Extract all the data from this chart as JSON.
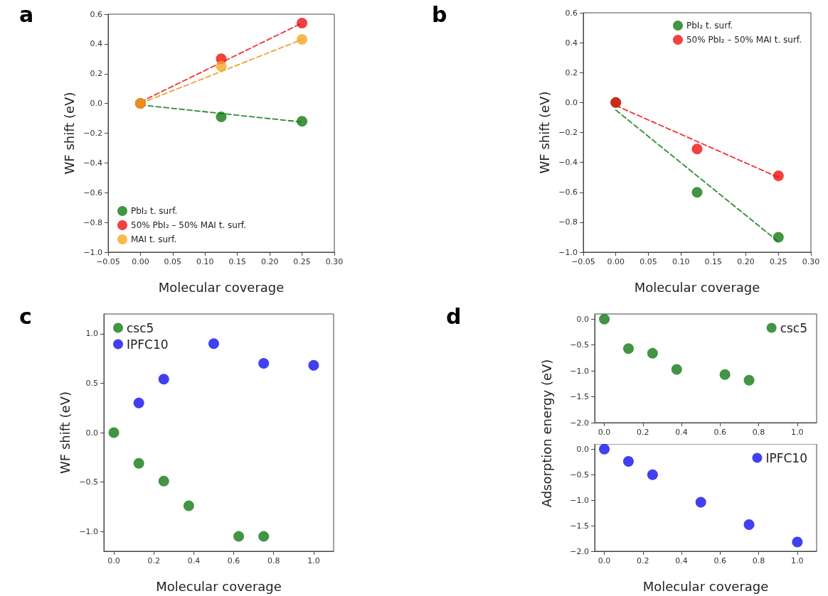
{
  "chart_data": [
    {
      "type": "scatter",
      "title": "a",
      "xlabel": "Molecular coverage",
      "ylabel": "WF shift (eV)",
      "marker": "circle",
      "legend": "bottom left",
      "grid": false,
      "xlim": [
        -0.05,
        0.3
      ],
      "xticks": [
        {
          "value": -0.05,
          "label": "−0.05"
        },
        {
          "value": 0,
          "label": "0.00"
        },
        {
          "value": 0.05,
          "label": "0.05"
        },
        {
          "value": 0.1,
          "label": "0.10"
        },
        {
          "value": 0.15,
          "label": "0.15"
        },
        {
          "value": 0.2,
          "label": "0.20"
        },
        {
          "value": 0.25,
          "label": "0.25"
        },
        {
          "value": 0.3,
          "label": "0.30"
        }
      ],
      "ylim": [
        -1,
        0.6
      ],
      "yticks": [
        {
          "value": -1,
          "label": "−1.0"
        },
        {
          "value": -0.8,
          "label": "−0.8"
        },
        {
          "value": -0.6,
          "label": "−0.6"
        },
        {
          "value": -0.4,
          "label": "−0.4"
        },
        {
          "value": -0.2,
          "label": "−0.2"
        },
        {
          "value": 0,
          "label": "0.0"
        },
        {
          "value": 0.2,
          "label": "0.2"
        },
        {
          "value": 0.4,
          "label": "0.4"
        },
        {
          "value": 0.6,
          "label": "0.6"
        }
      ],
      "series": [
        {
          "type": "line",
          "marker": "none",
          "line_style": "dashed",
          "color": "#2e8b2e",
          "x": [
            0,
            0.25
          ],
          "values": [
            -0.01,
            -0.125
          ]
        },
        {
          "type": "line",
          "marker": "none",
          "line_style": "dashed",
          "color": "#f0a030",
          "x": [
            0,
            0.25
          ],
          "values": [
            0,
            0.43
          ]
        },
        {
          "type": "line",
          "marker": "none",
          "line_style": "dashed",
          "color": "#ee3333",
          "x": [
            0,
            0.25
          ],
          "values": [
            0.01,
            0.54
          ]
        },
        {
          "name": "PbI₂ t. surf.",
          "color": "#137a13",
          "x": [
            0,
            0.125,
            0.25
          ],
          "values": [
            0,
            -0.09,
            -0.12
          ]
        },
        {
          "name": "50% PbI₂ – 50% MAI t. surf.",
          "color": "#ee1111",
          "x": [
            0,
            0.125,
            0.25
          ],
          "values": [
            0,
            0.3,
            0.54
          ]
        },
        {
          "name": "MAI t. surf.",
          "color": "#f5a623",
          "x": [
            0,
            0.125,
            0.25
          ],
          "values": [
            0,
            0.25,
            0.43
          ]
        }
      ]
    },
    {
      "type": "scatter",
      "title": "b",
      "xlabel": "Molecular coverage",
      "ylabel": "WF shift (eV)",
      "marker": "circle",
      "legend": "top right",
      "grid": false,
      "xlim": [
        -0.05,
        0.3
      ],
      "xticks": [
        {
          "value": -0.05,
          "label": "−0.05"
        },
        {
          "value": 0,
          "label": "0.00"
        },
        {
          "value": 0.05,
          "label": "0.05"
        },
        {
          "value": 0.1,
          "label": "0.10"
        },
        {
          "value": 0.15,
          "label": "0.15"
        },
        {
          "value": 0.2,
          "label": "0.20"
        },
        {
          "value": 0.25,
          "label": "0.25"
        },
        {
          "value": 0.3,
          "label": "0.30"
        }
      ],
      "ylim": [
        -1,
        0.6
      ],
      "yticks": [
        {
          "value": -1,
          "label": "−1.0"
        },
        {
          "value": -0.8,
          "label": "−0.8"
        },
        {
          "value": -0.6,
          "label": "−0.6"
        },
        {
          "value": -0.4,
          "label": "−0.4"
        },
        {
          "value": -0.2,
          "label": "−0.2"
        },
        {
          "value": 0,
          "label": "0.0"
        },
        {
          "value": 0.2,
          "label": "0.2"
        },
        {
          "value": 0.4,
          "label": "0.4"
        },
        {
          "value": 0.6,
          "label": "0.6"
        }
      ],
      "series": [
        {
          "type": "line",
          "marker": "none",
          "line_style": "dashed",
          "color": "#2e8b2e",
          "x": [
            0,
            0.25
          ],
          "values": [
            -0.05,
            -0.93
          ]
        },
        {
          "type": "line",
          "marker": "none",
          "line_style": "dashed",
          "color": "#ee3333",
          "x": [
            0,
            0.25
          ],
          "values": [
            -0.02,
            -0.5
          ]
        },
        {
          "name": "PbI₂ t. surf.",
          "color": "#137a13",
          "x": [
            0,
            0.125,
            0.25
          ],
          "values": [
            0,
            -0.6,
            -0.9
          ]
        },
        {
          "name": "50% PbI₂ – 50% MAI t. surf.",
          "color": "#ee1111",
          "x": [
            0,
            0.125,
            0.25
          ],
          "values": [
            0,
            -0.31,
            -0.49
          ]
        }
      ]
    },
    {
      "type": "scatter",
      "title": "c",
      "xlabel": "Molecular coverage",
      "ylabel": "WF shift (eV)",
      "marker": "circle",
      "legend": "top left",
      "grid": false,
      "xlim": [
        -0.05,
        1.1
      ],
      "xticks": [
        {
          "value": 0,
          "label": "0.0"
        },
        {
          "value": 0.2,
          "label": "0.2"
        },
        {
          "value": 0.4,
          "label": "0.4"
        },
        {
          "value": 0.6,
          "label": "0.6"
        },
        {
          "value": 0.8,
          "label": "0.8"
        },
        {
          "value": 1,
          "label": "1.0"
        }
      ],
      "ylim": [
        -1.2,
        1.2
      ],
      "yticks": [
        {
          "value": -1,
          "label": "−1.0"
        },
        {
          "value": -0.5,
          "label": "−0.5"
        },
        {
          "value": 0,
          "label": "0.0"
        },
        {
          "value": 0.5,
          "label": "0.5"
        },
        {
          "value": 1,
          "label": "1.0"
        }
      ],
      "series": [
        {
          "name": "csc5",
          "color": "#137a13",
          "x": [
            0,
            0.125,
            0.25,
            0.375,
            0.625,
            0.75
          ],
          "values": [
            0,
            -0.31,
            -0.49,
            -0.74,
            -1.05,
            -1.05
          ]
        },
        {
          "name": "IPFC10",
          "color": "#1010ee",
          "x": [
            0.125,
            0.25,
            0.5,
            0.75,
            1.0
          ],
          "values": [
            0.3,
            0.54,
            0.9,
            0.7,
            0.68
          ]
        }
      ]
    },
    {
      "type": "scatter",
      "title": "d",
      "ylabel": "Adsorption energy (eV)",
      "marker": "circle",
      "legend": "top right",
      "grid": false,
      "xlim": [
        -0.05,
        1.1
      ],
      "xticks": [
        {
          "value": 0,
          "label": "0.0"
        },
        {
          "value": 0.2,
          "label": "0.2"
        },
        {
          "value": 0.4,
          "label": "0.4"
        },
        {
          "value": 0.6,
          "label": "0.6"
        },
        {
          "value": 0.8,
          "label": "0.8"
        },
        {
          "value": 1,
          "label": "1.0"
        }
      ],
      "ylim": [
        -2,
        0.1
      ],
      "yticks": [
        {
          "value": -2,
          "label": "−2.0"
        },
        {
          "value": -1.5,
          "label": "−1.5"
        },
        {
          "value": -1,
          "label": "−1.0"
        },
        {
          "value": -0.5,
          "label": "−0.5"
        },
        {
          "value": 0,
          "label": "0.0"
        }
      ],
      "series": [
        {
          "name": "csc5",
          "color": "#137a13",
          "x": [
            0,
            0.125,
            0.25,
            0.375,
            0.625,
            0.75
          ],
          "values": [
            0,
            -0.57,
            -0.66,
            -0.97,
            -1.07,
            -1.18
          ]
        }
      ]
    },
    {
      "type": "scatter",
      "xlabel": "Molecular coverage",
      "marker": "circle",
      "legend": "top right",
      "grid": false,
      "xlim": [
        -0.05,
        1.1
      ],
      "xticks": [
        {
          "value": 0,
          "label": "0.0"
        },
        {
          "value": 0.2,
          "label": "0.2"
        },
        {
          "value": 0.4,
          "label": "0.4"
        },
        {
          "value": 0.6,
          "label": "0.6"
        },
        {
          "value": 0.8,
          "label": "0.8"
        },
        {
          "value": 1,
          "label": "1.0"
        }
      ],
      "ylim": [
        -2,
        0.1
      ],
      "yticks": [
        {
          "value": -2,
          "label": "−2.0"
        },
        {
          "value": -1.5,
          "label": "−1.5"
        },
        {
          "value": -1,
          "label": "−1.0"
        },
        {
          "value": -0.5,
          "label": "−0.5"
        },
        {
          "value": 0,
          "label": "0.0"
        }
      ],
      "series": [
        {
          "name": "IPFC10",
          "color": "#1010ee",
          "x": [
            0,
            0.125,
            0.25,
            0.5,
            0.75,
            1.0
          ],
          "values": [
            0,
            -0.24,
            -0.5,
            -1.04,
            -1.48,
            -1.82
          ]
        }
      ]
    }
  ]
}
